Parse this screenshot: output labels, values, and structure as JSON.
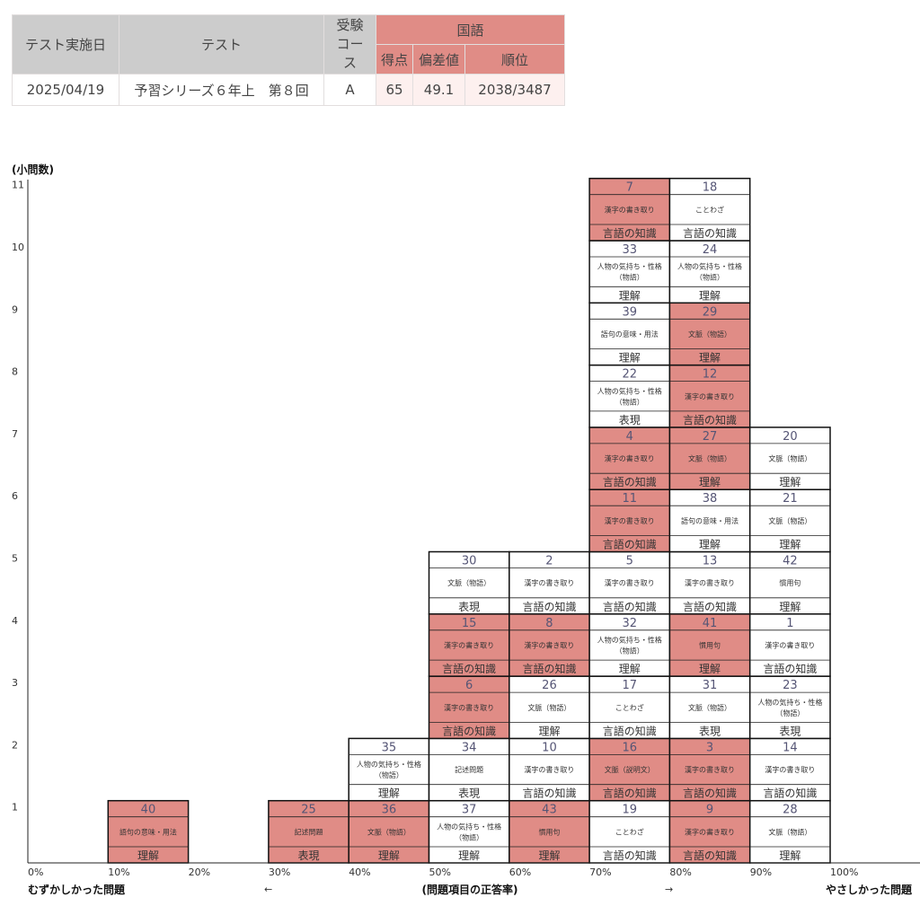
{
  "score_table": {
    "headers": {
      "date": "テスト実施日",
      "test": "テスト",
      "course_line1": "受験",
      "course_line2": "コース",
      "subject": "国語",
      "score": "得点",
      "deviation": "偏差値",
      "rank": "順位"
    },
    "row": {
      "date": "2025/04/19",
      "test": "予習シリーズ６年上　第８回",
      "course": "A",
      "score": "65",
      "deviation": "49.1",
      "rank": "2038/3487"
    }
  },
  "chart_data": {
    "type": "stacked-cell-histogram",
    "ylabel": "(小問数)",
    "xlabel": "(問題項目の正答率)",
    "left_caption": "むずかしかった問題",
    "right_caption": "やさしかった問題",
    "arrow_left": "←",
    "arrow_right": "→",
    "x_ticks": [
      "0%",
      "10%",
      "20%",
      "30%",
      "40%",
      "50%",
      "60%",
      "70%",
      "80%",
      "90%",
      "100%"
    ],
    "y_ticks": [
      1,
      2,
      3,
      4,
      5,
      6,
      7,
      8,
      9,
      10,
      11
    ],
    "ylim": [
      0,
      11
    ],
    "colors": {
      "wrong": "#e08c86",
      "correct": "#ffffff"
    },
    "columns": [
      {
        "bin": "10%",
        "items": [
          {
            "num": "40",
            "type": "語句の意味・用法",
            "category": "理解",
            "wrong": true
          }
        ]
      },
      {
        "bin": "30%",
        "items": [
          {
            "num": "25",
            "type": "記述問題",
            "category": "表現",
            "wrong": true
          }
        ]
      },
      {
        "bin": "40%",
        "items": [
          {
            "num": "36",
            "type": "文脈（物語）",
            "category": "理解",
            "wrong": true
          },
          {
            "num": "35",
            "type": "人物の気持ち・性格（物語）",
            "category": "理解",
            "wrong": false
          }
        ]
      },
      {
        "bin": "50%",
        "items": [
          {
            "num": "37",
            "type": "人物の気持ち・性格（物語）",
            "category": "理解",
            "wrong": false
          },
          {
            "num": "34",
            "type": "記述問題",
            "category": "表現",
            "wrong": false
          },
          {
            "num": "6",
            "type": "漢字の書き取り",
            "category": "言語の知識",
            "wrong": true
          },
          {
            "num": "15",
            "type": "漢字の書き取り",
            "category": "言語の知識",
            "wrong": true
          },
          {
            "num": "30",
            "type": "文脈（物語）",
            "category": "表現",
            "wrong": false
          }
        ]
      },
      {
        "bin": "60%",
        "items": [
          {
            "num": "43",
            "type": "慣用句",
            "category": "理解",
            "wrong": true
          },
          {
            "num": "10",
            "type": "漢字の書き取り",
            "category": "言語の知識",
            "wrong": false
          },
          {
            "num": "26",
            "type": "文脈（物語）",
            "category": "理解",
            "wrong": false
          },
          {
            "num": "8",
            "type": "漢字の書き取り",
            "category": "言語の知識",
            "wrong": true
          },
          {
            "num": "2",
            "type": "漢字の書き取り",
            "category": "言語の知識",
            "wrong": false
          }
        ]
      },
      {
        "bin": "70%",
        "items": [
          {
            "num": "19",
            "type": "ことわざ",
            "category": "言語の知識",
            "wrong": false
          },
          {
            "num": "16",
            "type": "文脈（説明文）",
            "category": "言語の知識",
            "wrong": true
          },
          {
            "num": "17",
            "type": "ことわざ",
            "category": "言語の知識",
            "wrong": false
          },
          {
            "num": "32",
            "type": "人物の気持ち・性格（物語）",
            "category": "理解",
            "wrong": false
          },
          {
            "num": "5",
            "type": "漢字の書き取り",
            "category": "言語の知識",
            "wrong": false
          },
          {
            "num": "11",
            "type": "漢字の書き取り",
            "category": "言語の知識",
            "wrong": true
          },
          {
            "num": "4",
            "type": "漢字の書き取り",
            "category": "言語の知識",
            "wrong": true
          },
          {
            "num": "22",
            "type": "人物の気持ち・性格（物語）",
            "category": "表現",
            "wrong": false
          },
          {
            "num": "39",
            "type": "語句の意味・用法",
            "category": "理解",
            "wrong": false
          },
          {
            "num": "33",
            "type": "人物の気持ち・性格（物語）",
            "category": "理解",
            "wrong": false
          },
          {
            "num": "7",
            "type": "漢字の書き取り",
            "category": "言語の知識",
            "wrong": true
          }
        ]
      },
      {
        "bin": "80%",
        "items": [
          {
            "num": "9",
            "type": "漢字の書き取り",
            "category": "言語の知識",
            "wrong": true
          },
          {
            "num": "3",
            "type": "漢字の書き取り",
            "category": "言語の知識",
            "wrong": true
          },
          {
            "num": "31",
            "type": "文脈（物語）",
            "category": "表現",
            "wrong": false
          },
          {
            "num": "41",
            "type": "慣用句",
            "category": "理解",
            "wrong": true
          },
          {
            "num": "13",
            "type": "漢字の書き取り",
            "category": "言語の知識",
            "wrong": false
          },
          {
            "num": "38",
            "type": "語句の意味・用法",
            "category": "理解",
            "wrong": false
          },
          {
            "num": "27",
            "type": "文脈（物語）",
            "category": "理解",
            "wrong": true
          },
          {
            "num": "12",
            "type": "漢字の書き取り",
            "category": "言語の知識",
            "wrong": true
          },
          {
            "num": "29",
            "type": "文脈（物語）",
            "category": "理解",
            "wrong": true
          },
          {
            "num": "24",
            "type": "人物の気持ち・性格（物語）",
            "category": "理解",
            "wrong": false
          },
          {
            "num": "18",
            "type": "ことわざ",
            "category": "言語の知識",
            "wrong": false
          }
        ]
      },
      {
        "bin": "90%",
        "items": [
          {
            "num": "28",
            "type": "文脈（物語）",
            "category": "理解",
            "wrong": false
          },
          {
            "num": "14",
            "type": "漢字の書き取り",
            "category": "言語の知識",
            "wrong": false
          },
          {
            "num": "23",
            "type": "人物の気持ち・性格（物語）",
            "category": "表現",
            "wrong": false
          },
          {
            "num": "1",
            "type": "漢字の書き取り",
            "category": "言語の知識",
            "wrong": false
          },
          {
            "num": "42",
            "type": "慣用句",
            "category": "理解",
            "wrong": false
          },
          {
            "num": "21",
            "type": "文脈（物語）",
            "category": "理解",
            "wrong": false
          },
          {
            "num": "20",
            "type": "文脈（物語）",
            "category": "理解",
            "wrong": false
          }
        ]
      }
    ]
  }
}
